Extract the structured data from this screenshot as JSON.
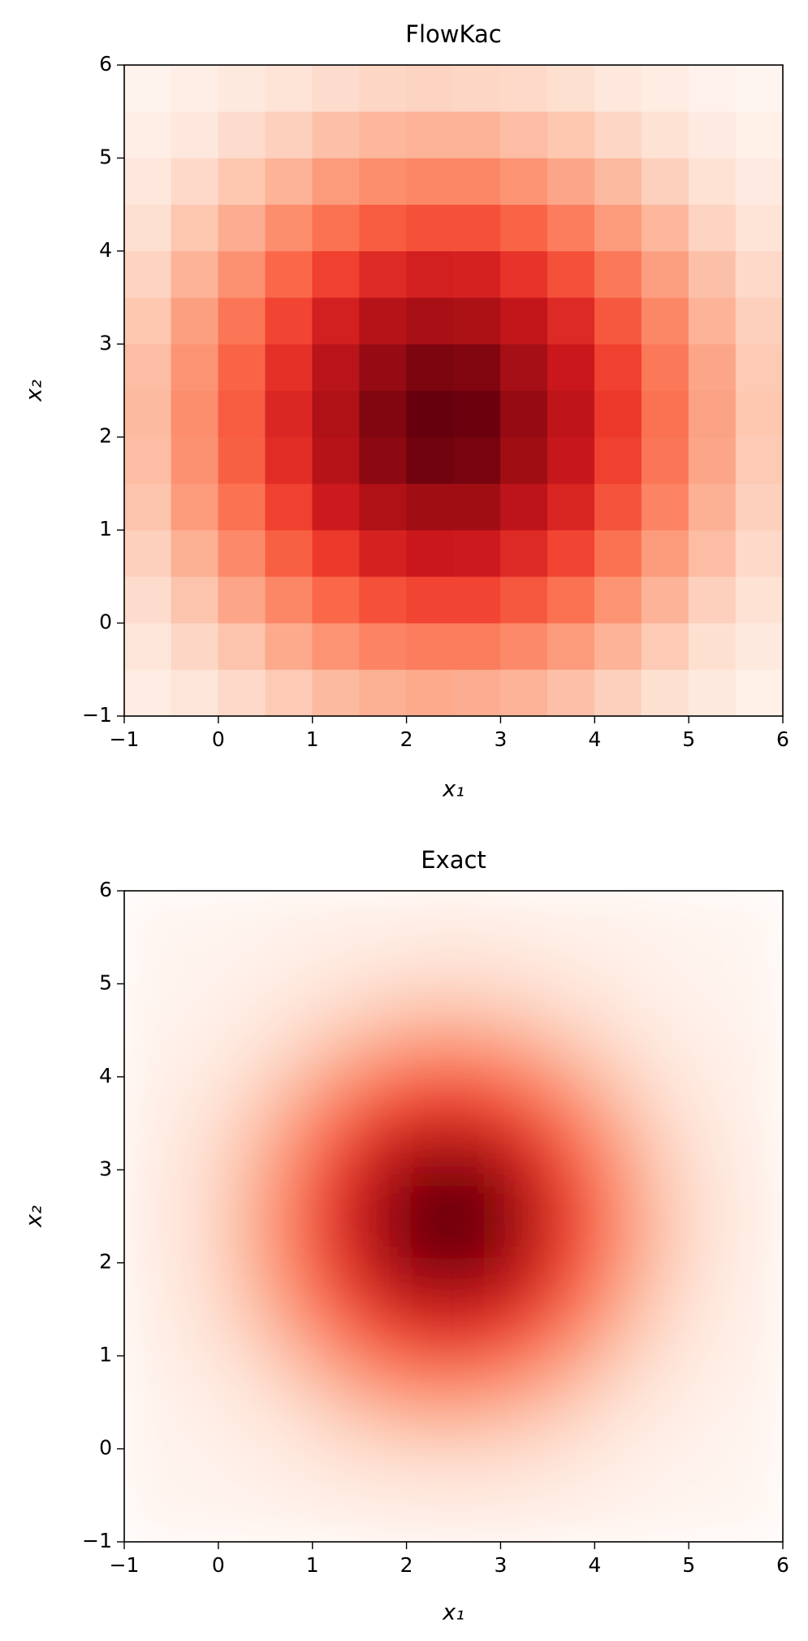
{
  "chart_data": [
    {
      "type": "heatmap",
      "title": "FlowKac",
      "xlabel": "x₁",
      "ylabel": "x₂",
      "colormap": "Reds",
      "shading": "flat",
      "x": [
        -0.75,
        -0.25,
        0.25,
        0.75,
        1.25,
        1.75,
        2.25,
        2.75,
        3.25,
        3.75,
        4.25,
        4.75,
        5.25,
        5.75
      ],
      "y": [
        -0.75,
        -0.25,
        0.25,
        0.75,
        1.25,
        1.75,
        2.25,
        2.75,
        3.25,
        3.75,
        4.25,
        4.75,
        5.25,
        5.75
      ],
      "z": [
        [
          0.1,
          0.14,
          0.19,
          0.24,
          0.29,
          0.32,
          0.34,
          0.33,
          0.31,
          0.27,
          0.22,
          0.17,
          0.12,
          0.08
        ],
        [
          0.14,
          0.2,
          0.26,
          0.34,
          0.4,
          0.45,
          0.47,
          0.47,
          0.43,
          0.38,
          0.31,
          0.24,
          0.17,
          0.12
        ],
        [
          0.18,
          0.26,
          0.35,
          0.44,
          0.53,
          0.59,
          0.62,
          0.62,
          0.57,
          0.5,
          0.4,
          0.31,
          0.22,
          0.16
        ],
        [
          0.22,
          0.32,
          0.43,
          0.55,
          0.65,
          0.73,
          0.77,
          0.76,
          0.7,
          0.62,
          0.5,
          0.38,
          0.28,
          0.19
        ],
        [
          0.26,
          0.38,
          0.5,
          0.63,
          0.76,
          0.85,
          0.89,
          0.89,
          0.81,
          0.72,
          0.58,
          0.45,
          0.32,
          0.22
        ],
        [
          0.28,
          0.41,
          0.55,
          0.69,
          0.83,
          0.93,
          0.98,
          0.97,
          0.89,
          0.78,
          0.63,
          0.49,
          0.35,
          0.24
        ],
        [
          0.29,
          0.42,
          0.56,
          0.71,
          0.85,
          0.95,
          1.0,
          0.99,
          0.91,
          0.8,
          0.65,
          0.5,
          0.36,
          0.25
        ],
        [
          0.28,
          0.4,
          0.54,
          0.68,
          0.82,
          0.91,
          0.96,
          0.95,
          0.88,
          0.77,
          0.63,
          0.48,
          0.35,
          0.24
        ],
        [
          0.25,
          0.37,
          0.49,
          0.62,
          0.74,
          0.83,
          0.87,
          0.86,
          0.79,
          0.7,
          0.57,
          0.44,
          0.31,
          0.22
        ],
        [
          0.21,
          0.31,
          0.41,
          0.53,
          0.63,
          0.7,
          0.74,
          0.73,
          0.67,
          0.59,
          0.48,
          0.37,
          0.27,
          0.19
        ],
        [
          0.17,
          0.25,
          0.33,
          0.42,
          0.5,
          0.56,
          0.59,
          0.59,
          0.54,
          0.47,
          0.38,
          0.3,
          0.21,
          0.15
        ],
        [
          0.13,
          0.19,
          0.25,
          0.31,
          0.38,
          0.42,
          0.44,
          0.44,
          0.4,
          0.35,
          0.29,
          0.22,
          0.16,
          0.11
        ],
        [
          0.09,
          0.13,
          0.18,
          0.22,
          0.27,
          0.3,
          0.31,
          0.31,
          0.28,
          0.25,
          0.2,
          0.16,
          0.11,
          0.08
        ],
        [
          0.06,
          0.09,
          0.12,
          0.15,
          0.18,
          0.2,
          0.21,
          0.2,
          0.19,
          0.17,
          0.13,
          0.1,
          0.07,
          0.05
        ]
      ],
      "xlim": [
        -1,
        6
      ],
      "ylim": [
        -1,
        6
      ],
      "xticks": [
        {
          "value": -1,
          "label": "−1"
        },
        0,
        1,
        2,
        3,
        4,
        5,
        6
      ],
      "yticks": [
        {
          "value": -1,
          "label": "−1"
        },
        0,
        1,
        2,
        3,
        4,
        5,
        6
      ]
    },
    {
      "type": "heatmap",
      "title": "Exact",
      "xlabel": "x₁",
      "ylabel": "x₂",
      "colormap": "Reds",
      "shading": "smooth",
      "x": [
        -0.75,
        -0.25,
        0.25,
        0.75,
        1.25,
        1.75,
        2.25,
        2.75,
        3.25,
        3.75,
        4.25,
        4.75,
        5.25,
        5.75
      ],
      "y": [
        -0.75,
        -0.25,
        0.25,
        0.75,
        1.25,
        1.75,
        2.25,
        2.75,
        3.25,
        3.75,
        4.25,
        4.75,
        5.25,
        5.75
      ],
      "z": [
        [
          0.0,
          0.01,
          0.01,
          0.02,
          0.03,
          0.04,
          0.05,
          0.05,
          0.04,
          0.03,
          0.02,
          0.01,
          0.0,
          0.0
        ],
        [
          0.01,
          0.01,
          0.03,
          0.05,
          0.08,
          0.1,
          0.11,
          0.11,
          0.1,
          0.07,
          0.04,
          0.02,
          0.01,
          0.0
        ],
        [
          0.01,
          0.03,
          0.06,
          0.1,
          0.16,
          0.21,
          0.24,
          0.23,
          0.2,
          0.15,
          0.09,
          0.05,
          0.02,
          0.01
        ],
        [
          0.02,
          0.05,
          0.1,
          0.18,
          0.28,
          0.37,
          0.42,
          0.41,
          0.35,
          0.26,
          0.16,
          0.09,
          0.04,
          0.02
        ],
        [
          0.03,
          0.08,
          0.16,
          0.28,
          0.43,
          0.56,
          0.65,
          0.64,
          0.54,
          0.4,
          0.25,
          0.14,
          0.06,
          0.03
        ],
        [
          0.04,
          0.1,
          0.21,
          0.37,
          0.56,
          0.75,
          0.85,
          0.84,
          0.72,
          0.53,
          0.33,
          0.18,
          0.08,
          0.03
        ],
        [
          0.05,
          0.11,
          0.24,
          0.42,
          0.65,
          0.85,
          0.98,
          0.96,
          0.82,
          0.6,
          0.38,
          0.21,
          0.1,
          0.04
        ],
        [
          0.05,
          0.11,
          0.23,
          0.41,
          0.64,
          0.84,
          0.96,
          0.95,
          0.81,
          0.59,
          0.37,
          0.2,
          0.1,
          0.04
        ],
        [
          0.04,
          0.1,
          0.2,
          0.35,
          0.54,
          0.72,
          0.82,
          0.81,
          0.68,
          0.5,
          0.32,
          0.17,
          0.08,
          0.03
        ],
        [
          0.03,
          0.07,
          0.15,
          0.26,
          0.4,
          0.53,
          0.6,
          0.59,
          0.5,
          0.37,
          0.23,
          0.13,
          0.06,
          0.02
        ],
        [
          0.02,
          0.04,
          0.09,
          0.16,
          0.25,
          0.33,
          0.38,
          0.37,
          0.32,
          0.23,
          0.15,
          0.08,
          0.04,
          0.02
        ],
        [
          0.01,
          0.02,
          0.05,
          0.09,
          0.14,
          0.18,
          0.21,
          0.2,
          0.17,
          0.13,
          0.08,
          0.04,
          0.02,
          0.01
        ],
        [
          0.0,
          0.01,
          0.02,
          0.04,
          0.06,
          0.08,
          0.1,
          0.1,
          0.08,
          0.06,
          0.04,
          0.02,
          0.01,
          0.0
        ],
        [
          0.0,
          0.0,
          0.01,
          0.02,
          0.03,
          0.03,
          0.04,
          0.04,
          0.03,
          0.02,
          0.02,
          0.01,
          0.0,
          0.0
        ]
      ],
      "xlim": [
        -1,
        6
      ],
      "ylim": [
        -1,
        6
      ],
      "xticks": [
        {
          "value": -1,
          "label": "−1"
        },
        0,
        1,
        2,
        3,
        4,
        5,
        6
      ],
      "yticks": [
        {
          "value": -1,
          "label": "−1"
        },
        0,
        1,
        2,
        3,
        4,
        5,
        6
      ]
    }
  ]
}
